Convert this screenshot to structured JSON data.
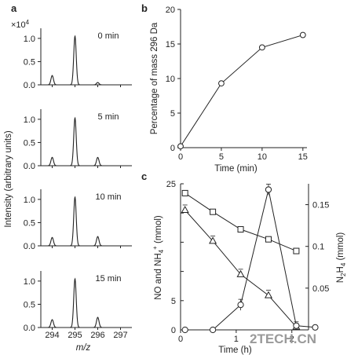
{
  "panels": {
    "a": "a",
    "b": "b",
    "c": "c"
  },
  "watermark": "2TECH.CN",
  "chart_data": [
    {
      "id": "a",
      "type": "line",
      "xlabel": "m/z",
      "ylabel": "Intensity (arbitrary units)",
      "y_multiplier": "×10",
      "y_multiplier_exp": "4",
      "x_ticks": [
        "294",
        "295",
        "296",
        "297"
      ],
      "xlim": [
        293.5,
        297.5
      ],
      "y_ticks": [
        "0.0",
        "0.5",
        "1.0"
      ],
      "ylim": [
        0,
        1.15
      ],
      "subplots": [
        {
          "label": "0 min",
          "peaks": [
            {
              "mz": 294,
              "h": 0.2
            },
            {
              "mz": 295,
              "h": 1.05
            },
            {
              "mz": 296,
              "h": 0.05
            }
          ]
        },
        {
          "label": "5 min",
          "peaks": [
            {
              "mz": 294,
              "h": 0.18
            },
            {
              "mz": 295,
              "h": 1.03
            },
            {
              "mz": 296,
              "h": 0.18
            }
          ]
        },
        {
          "label": "10 min",
          "peaks": [
            {
              "mz": 294,
              "h": 0.18
            },
            {
              "mz": 295,
              "h": 1.05
            },
            {
              "mz": 296,
              "h": 0.2
            }
          ]
        },
        {
          "label": "15 min",
          "peaks": [
            {
              "mz": 294,
              "h": 0.17
            },
            {
              "mz": 295,
              "h": 1.05
            },
            {
              "mz": 296,
              "h": 0.22
            }
          ]
        }
      ]
    },
    {
      "id": "b",
      "type": "line",
      "xlabel": "Time (min)",
      "ylabel": "Percentage of mass 296 Da",
      "x_ticks": [
        "0",
        "5",
        "10",
        "15"
      ],
      "xlim": [
        0,
        15.5
      ],
      "y_ticks": [
        "0",
        "5",
        "10",
        "15",
        "20"
      ],
      "ylim": [
        0,
        20
      ],
      "x": [
        0,
        5,
        10,
        15
      ],
      "y": [
        0.2,
        9.3,
        14.5,
        16.3
      ]
    },
    {
      "id": "c",
      "type": "line",
      "xlabel": "Time (h)",
      "ylabel_left": "NO and NH",
      "ylabel_left_sub": "4",
      "ylabel_left_sup": "+",
      "ylabel_left_unit": " (mmol)",
      "ylabel_right": "N",
      "ylabel_right_sub1": "2",
      "ylabel_right_mid": "H",
      "ylabel_right_sub2": "4",
      "ylabel_right_unit": " (mmol)",
      "x_ticks": [
        "0",
        "1",
        "2"
      ],
      "xlim": [
        0,
        2.3
      ],
      "y_left_ticks": [
        "0",
        "5",
        "10",
        "15",
        "20",
        "25"
      ],
      "ylim_left": [
        0,
        25
      ],
      "y_right_ticks": [
        "0.05",
        "0.1",
        "0.15"
      ],
      "ylim_right": [
        0,
        0.175
      ],
      "series": [
        {
          "marker": "square",
          "axis": "left",
          "x": [
            0.08,
            0.58,
            1.08,
            1.58,
            2.08
          ],
          "y": [
            23.4,
            20.2,
            17.2,
            15.5,
            13.5
          ]
        },
        {
          "marker": "triangle",
          "axis": "left",
          "x": [
            0.08,
            0.58,
            1.08,
            1.58,
            2.08
          ],
          "y": [
            20.5,
            15.2,
            9.5,
            5.9,
            0.5
          ]
        },
        {
          "marker": "circle",
          "axis": "right",
          "x": [
            0.08,
            0.58,
            1.08,
            1.58,
            2.08,
            2.42
          ],
          "y": [
            0.0,
            0.0,
            0.03,
            0.168,
            0.005,
            0.003
          ]
        }
      ]
    }
  ]
}
